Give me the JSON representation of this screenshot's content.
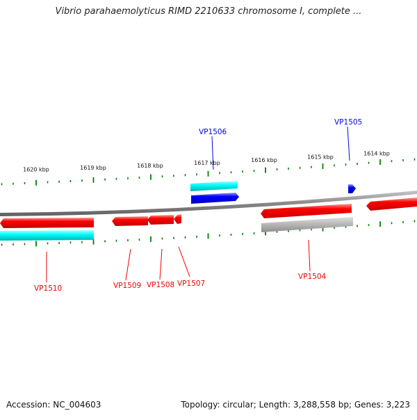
{
  "title": "Vibrio parahaemolyticus RIMD 2210633 chromosome I, complete ...",
  "footer": {
    "accession": "Accession: NC_004603",
    "topology": "Topology: circular; Length: 3,288,558 bp; Genes: 3,223"
  },
  "colors": {
    "forward_gene": "#0000ee",
    "reverse_gene": "#ee0000",
    "cds_cyan": "#00dddd",
    "cds_gray": "#aaaaaa",
    "tick": "#008000",
    "backbone": "#888888"
  },
  "scale": {
    "ticks": [
      {
        "label": "1620 kbp"
      },
      {
        "label": "1619 kbp"
      },
      {
        "label": "1618 kbp"
      },
      {
        "label": "1617 kbp"
      },
      {
        "label": "1616 kbp"
      },
      {
        "label": "1615 kbp"
      },
      {
        "label": "1614 kbp"
      }
    ]
  },
  "genes": [
    {
      "label": "VP1510",
      "strand": "reverse"
    },
    {
      "label": "VP1509",
      "strand": "reverse"
    },
    {
      "label": "VP1508",
      "strand": "reverse"
    },
    {
      "label": "VP1507",
      "strand": "reverse"
    },
    {
      "label": "VP1506",
      "strand": "forward"
    },
    {
      "label": "VP1505",
      "strand": "forward"
    },
    {
      "label": "VP1504",
      "strand": "reverse"
    }
  ]
}
